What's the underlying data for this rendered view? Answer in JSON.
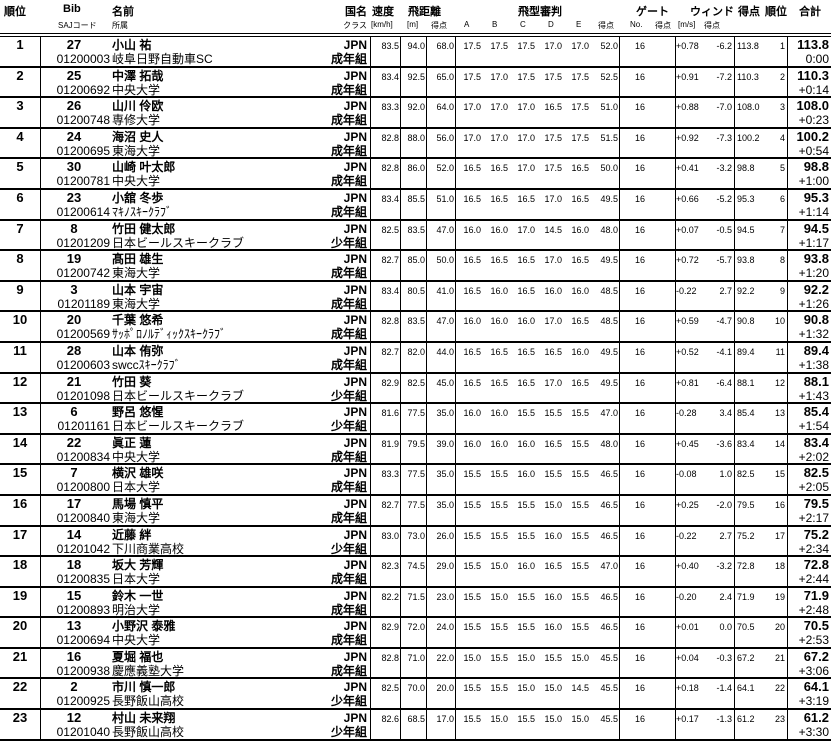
{
  "header": {
    "rank": "順位",
    "bib": "Bib",
    "saj_code": "SAJコード",
    "name": "名前",
    "club": "所属",
    "nation": "国名",
    "class": "クラス",
    "speed": "速度",
    "speed_unit": "[km/h]",
    "distance": "飛距離",
    "distance_unit": "[m]",
    "distance_points": "得点",
    "judges": "飛型審判",
    "judge_a": "A",
    "judge_b": "B",
    "judge_c": "C",
    "judge_d": "D",
    "judge_e": "E",
    "judge_points": "得点",
    "gate": "ゲート",
    "gate_no": "No.",
    "gate_points": "得点",
    "wind": "ウィンド",
    "wind_unit": "[m/s]",
    "wind_points": "得点",
    "points": "得点",
    "round_rank": "順位",
    "total": "合計"
  },
  "rows": [
    {
      "rank": "1",
      "bib": "27",
      "name": "小山 祐",
      "code": "01200003",
      "club": "岐阜日野自動車SC",
      "nation": "JPN",
      "class": "成年組",
      "speed": "83.5",
      "dist": "94.0",
      "dist_pts": "68.0",
      "a": "17.5",
      "b": "17.5",
      "c": "17.5",
      "d": "17.0",
      "e": "17.0",
      "judge_pts": "52.0",
      "gate": "16",
      "wind": "+0.78",
      "wind_pts": "-6.2",
      "pts": "113.8",
      "round_rank": "1",
      "total": "113.8",
      "diff": "0:00"
    },
    {
      "rank": "2",
      "bib": "25",
      "name": "中澤 拓哉",
      "code": "01200692",
      "club": "中央大学",
      "nation": "JPN",
      "class": "成年組",
      "speed": "83.4",
      "dist": "92.5",
      "dist_pts": "65.0",
      "a": "17.5",
      "b": "17.0",
      "c": "17.5",
      "d": "17.5",
      "e": "17.5",
      "judge_pts": "52.5",
      "gate": "16",
      "wind": "+0.91",
      "wind_pts": "-7.2",
      "pts": "110.3",
      "round_rank": "2",
      "total": "110.3",
      "diff": "+0:14"
    },
    {
      "rank": "3",
      "bib": "26",
      "name": "山川 伶欧",
      "code": "01200748",
      "club": "専修大学",
      "nation": "JPN",
      "class": "成年組",
      "speed": "83.3",
      "dist": "92.0",
      "dist_pts": "64.0",
      "a": "17.0",
      "b": "17.0",
      "c": "17.0",
      "d": "16.5",
      "e": "17.5",
      "judge_pts": "51.0",
      "gate": "16",
      "wind": "+0.88",
      "wind_pts": "-7.0",
      "pts": "108.0",
      "round_rank": "3",
      "total": "108.0",
      "diff": "+0:23"
    },
    {
      "rank": "4",
      "bib": "24",
      "name": "海沼 史人",
      "code": "01200695",
      "club": "東海大学",
      "nation": "JPN",
      "class": "成年組",
      "speed": "82.8",
      "dist": "88.0",
      "dist_pts": "56.0",
      "a": "17.0",
      "b": "17.0",
      "c": "17.0",
      "d": "17.5",
      "e": "17.5",
      "judge_pts": "51.5",
      "gate": "16",
      "wind": "+0.92",
      "wind_pts": "-7.3",
      "pts": "100.2",
      "round_rank": "4",
      "total": "100.2",
      "diff": "+0:54"
    },
    {
      "rank": "5",
      "bib": "30",
      "name": "山崎 叶太郎",
      "code": "01200781",
      "club": "中央大学",
      "nation": "JPN",
      "class": "成年組",
      "speed": "82.8",
      "dist": "86.0",
      "dist_pts": "52.0",
      "a": "16.5",
      "b": "16.5",
      "c": "17.0",
      "d": "17.5",
      "e": "16.5",
      "judge_pts": "50.0",
      "gate": "16",
      "wind": "+0.41",
      "wind_pts": "-3.2",
      "pts": "98.8",
      "round_rank": "5",
      "total": "98.8",
      "diff": "+1:00"
    },
    {
      "rank": "6",
      "bib": "23",
      "name": "小舘 冬歩",
      "code": "01200614",
      "club": "ﾏｷﾉｽｷｰｸﾗﾌﾞ",
      "nation": "JPN",
      "class": "成年組",
      "speed": "83.4",
      "dist": "85.5",
      "dist_pts": "51.0",
      "a": "16.5",
      "b": "16.5",
      "c": "16.5",
      "d": "17.0",
      "e": "16.5",
      "judge_pts": "49.5",
      "gate": "16",
      "wind": "+0.66",
      "wind_pts": "-5.2",
      "pts": "95.3",
      "round_rank": "6",
      "total": "95.3",
      "diff": "+1:14"
    },
    {
      "rank": "7",
      "bib": "8",
      "name": "竹田 健太郎",
      "code": "01201209",
      "club": "日本ビールスキークラブ",
      "nation": "JPN",
      "class": "少年組",
      "speed": "82.5",
      "dist": "83.5",
      "dist_pts": "47.0",
      "a": "16.0",
      "b": "16.0",
      "c": "17.0",
      "d": "14.5",
      "e": "16.0",
      "judge_pts": "48.0",
      "gate": "16",
      "wind": "+0.07",
      "wind_pts": "-0.5",
      "pts": "94.5",
      "round_rank": "7",
      "total": "94.5",
      "diff": "+1:17"
    },
    {
      "rank": "8",
      "bib": "19",
      "name": "髙田 雄生",
      "code": "01200742",
      "club": "東海大学",
      "nation": "JPN",
      "class": "成年組",
      "speed": "82.7",
      "dist": "85.0",
      "dist_pts": "50.0",
      "a": "16.5",
      "b": "16.5",
      "c": "16.5",
      "d": "17.0",
      "e": "16.5",
      "judge_pts": "49.5",
      "gate": "16",
      "wind": "+0.72",
      "wind_pts": "-5.7",
      "pts": "93.8",
      "round_rank": "8",
      "total": "93.8",
      "diff": "+1:20"
    },
    {
      "rank": "9",
      "bib": "3",
      "name": "山本 宇宙",
      "code": "01201189",
      "club": "東海大学",
      "nation": "JPN",
      "class": "成年組",
      "speed": "83.4",
      "dist": "80.5",
      "dist_pts": "41.0",
      "a": "16.5",
      "b": "16.0",
      "c": "16.5",
      "d": "16.0",
      "e": "16.0",
      "judge_pts": "48.5",
      "gate": "16",
      "wind": "-0.22",
      "wind_pts": "2.7",
      "pts": "92.2",
      "round_rank": "9",
      "total": "92.2",
      "diff": "+1:26"
    },
    {
      "rank": "10",
      "bib": "20",
      "name": "千葉 悠希",
      "code": "01200569",
      "club": "ｻｯﾎﾟﾛﾉﾙﾃﾞｨｯｸｽｷｰｸﾗﾌﾞ",
      "nation": "JPN",
      "class": "成年組",
      "speed": "82.8",
      "dist": "83.5",
      "dist_pts": "47.0",
      "a": "16.0",
      "b": "16.0",
      "c": "16.0",
      "d": "17.0",
      "e": "16.5",
      "judge_pts": "48.5",
      "gate": "16",
      "wind": "+0.59",
      "wind_pts": "-4.7",
      "pts": "90.8",
      "round_rank": "10",
      "total": "90.8",
      "diff": "+1:32"
    },
    {
      "rank": "11",
      "bib": "28",
      "name": "山本 侑弥",
      "code": "01200603",
      "club": "swccｽｷｰｸﾗﾌﾞ",
      "nation": "JPN",
      "class": "成年組",
      "speed": "82.7",
      "dist": "82.0",
      "dist_pts": "44.0",
      "a": "16.5",
      "b": "16.5",
      "c": "16.5",
      "d": "16.5",
      "e": "16.0",
      "judge_pts": "49.5",
      "gate": "16",
      "wind": "+0.52",
      "wind_pts": "-4.1",
      "pts": "89.4",
      "round_rank": "11",
      "total": "89.4",
      "diff": "+1:38"
    },
    {
      "rank": "12",
      "bib": "21",
      "name": "竹田 葵",
      "code": "01201098",
      "club": "日本ビールスキークラブ",
      "nation": "JPN",
      "class": "少年組",
      "speed": "82.9",
      "dist": "82.5",
      "dist_pts": "45.0",
      "a": "16.5",
      "b": "16.5",
      "c": "16.5",
      "d": "17.0",
      "e": "16.5",
      "judge_pts": "49.5",
      "gate": "16",
      "wind": "+0.81",
      "wind_pts": "-6.4",
      "pts": "88.1",
      "round_rank": "12",
      "total": "88.1",
      "diff": "+1:43"
    },
    {
      "rank": "13",
      "bib": "6",
      "name": "野呂 悠惺",
      "code": "01201161",
      "club": "日本ビールスキークラブ",
      "nation": "JPN",
      "class": "少年組",
      "speed": "81.6",
      "dist": "77.5",
      "dist_pts": "35.0",
      "a": "16.0",
      "b": "16.0",
      "c": "15.5",
      "d": "15.5",
      "e": "15.5",
      "judge_pts": "47.0",
      "gate": "16",
      "wind": "-0.28",
      "wind_pts": "3.4",
      "pts": "85.4",
      "round_rank": "13",
      "total": "85.4",
      "diff": "+1:54"
    },
    {
      "rank": "14",
      "bib": "22",
      "name": "眞正 蓮",
      "code": "01200834",
      "club": "中央大学",
      "nation": "JPN",
      "class": "成年組",
      "speed": "81.9",
      "dist": "79.5",
      "dist_pts": "39.0",
      "a": "16.0",
      "b": "16.0",
      "c": "16.0",
      "d": "16.5",
      "e": "15.5",
      "judge_pts": "48.0",
      "gate": "16",
      "wind": "+0.45",
      "wind_pts": "-3.6",
      "pts": "83.4",
      "round_rank": "14",
      "total": "83.4",
      "diff": "+2:02"
    },
    {
      "rank": "15",
      "bib": "7",
      "name": "横沢 雄咲",
      "code": "01200800",
      "club": "日本大学",
      "nation": "JPN",
      "class": "成年組",
      "speed": "83.3",
      "dist": "77.5",
      "dist_pts": "35.0",
      "a": "15.5",
      "b": "15.5",
      "c": "16.0",
      "d": "15.5",
      "e": "15.5",
      "judge_pts": "46.5",
      "gate": "16",
      "wind": "-0.08",
      "wind_pts": "1.0",
      "pts": "82.5",
      "round_rank": "15",
      "total": "82.5",
      "diff": "+2:05"
    },
    {
      "rank": "16",
      "bib": "17",
      "name": "馬場 慎平",
      "code": "01200840",
      "club": "東海大学",
      "nation": "JPN",
      "class": "成年組",
      "speed": "82.7",
      "dist": "77.5",
      "dist_pts": "35.0",
      "a": "15.5",
      "b": "15.5",
      "c": "15.5",
      "d": "15.0",
      "e": "15.5",
      "judge_pts": "46.5",
      "gate": "16",
      "wind": "+0.25",
      "wind_pts": "-2.0",
      "pts": "79.5",
      "round_rank": "16",
      "total": "79.5",
      "diff": "+2:17"
    },
    {
      "rank": "17",
      "bib": "14",
      "name": "近藤 絆",
      "code": "01201042",
      "club": "下川商業高校",
      "nation": "JPN",
      "class": "少年組",
      "speed": "83.0",
      "dist": "73.0",
      "dist_pts": "26.0",
      "a": "15.5",
      "b": "15.5",
      "c": "15.5",
      "d": "16.0",
      "e": "15.5",
      "judge_pts": "46.5",
      "gate": "16",
      "wind": "-0.22",
      "wind_pts": "2.7",
      "pts": "75.2",
      "round_rank": "17",
      "total": "75.2",
      "diff": "+2:34"
    },
    {
      "rank": "18",
      "bib": "18",
      "name": "坂大 芳輝",
      "code": "01200835",
      "club": "日本大学",
      "nation": "JPN",
      "class": "成年組",
      "speed": "82.3",
      "dist": "74.5",
      "dist_pts": "29.0",
      "a": "15.5",
      "b": "15.0",
      "c": "16.0",
      "d": "16.5",
      "e": "15.5",
      "judge_pts": "47.0",
      "gate": "16",
      "wind": "+0.40",
      "wind_pts": "-3.2",
      "pts": "72.8",
      "round_rank": "18",
      "total": "72.8",
      "diff": "+2:44"
    },
    {
      "rank": "19",
      "bib": "15",
      "name": "鈴木 一世",
      "code": "01200893",
      "club": "明治大学",
      "nation": "JPN",
      "class": "成年組",
      "speed": "82.2",
      "dist": "71.5",
      "dist_pts": "23.0",
      "a": "15.5",
      "b": "15.0",
      "c": "15.5",
      "d": "16.0",
      "e": "15.5",
      "judge_pts": "46.5",
      "gate": "16",
      "wind": "-0.20",
      "wind_pts": "2.4",
      "pts": "71.9",
      "round_rank": "19",
      "total": "71.9",
      "diff": "+2:48"
    },
    {
      "rank": "20",
      "bib": "13",
      "name": "小野沢 泰雅",
      "code": "01200694",
      "club": "中央大学",
      "nation": "JPN",
      "class": "成年組",
      "speed": "82.9",
      "dist": "72.0",
      "dist_pts": "24.0",
      "a": "15.5",
      "b": "15.5",
      "c": "15.5",
      "d": "16.0",
      "e": "15.5",
      "judge_pts": "46.5",
      "gate": "16",
      "wind": "+0.01",
      "wind_pts": "0.0",
      "pts": "70.5",
      "round_rank": "20",
      "total": "70.5",
      "diff": "+2:53"
    },
    {
      "rank": "21",
      "bib": "16",
      "name": "夏堀 福也",
      "code": "01200938",
      "club": "慶應義塾大学",
      "nation": "JPN",
      "class": "成年組",
      "speed": "82.8",
      "dist": "71.0",
      "dist_pts": "22.0",
      "a": "15.0",
      "b": "15.5",
      "c": "15.0",
      "d": "15.5",
      "e": "15.0",
      "judge_pts": "45.5",
      "gate": "16",
      "wind": "+0.04",
      "wind_pts": "-0.3",
      "pts": "67.2",
      "round_rank": "21",
      "total": "67.2",
      "diff": "+3:06"
    },
    {
      "rank": "22",
      "bib": "2",
      "name": "市川 慎一郎",
      "code": "01200925",
      "club": "長野飯山高校",
      "nation": "JPN",
      "class": "少年組",
      "speed": "82.5",
      "dist": "70.0",
      "dist_pts": "20.0",
      "a": "15.5",
      "b": "15.5",
      "c": "15.0",
      "d": "15.0",
      "e": "14.5",
      "judge_pts": "45.5",
      "gate": "16",
      "wind": "+0.18",
      "wind_pts": "-1.4",
      "pts": "64.1",
      "round_rank": "22",
      "total": "64.1",
      "diff": "+3:19"
    },
    {
      "rank": "23",
      "bib": "12",
      "name": "村山 未来翔",
      "code": "01201040",
      "club": "長野飯山高校",
      "nation": "JPN",
      "class": "少年組",
      "speed": "82.6",
      "dist": "68.5",
      "dist_pts": "17.0",
      "a": "15.5",
      "b": "15.0",
      "c": "15.5",
      "d": "15.0",
      "e": "15.0",
      "judge_pts": "45.5",
      "gate": "16",
      "wind": "+0.17",
      "wind_pts": "-1.3",
      "pts": "61.2",
      "round_rank": "23",
      "total": "61.2",
      "diff": "+3:30"
    }
  ]
}
